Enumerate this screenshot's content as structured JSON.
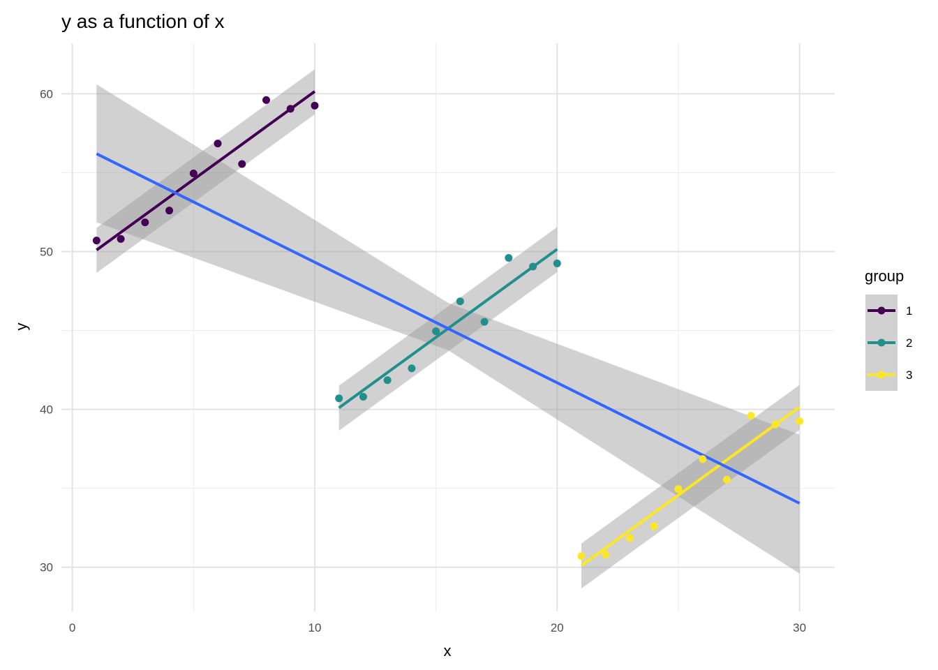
{
  "chart_data": {
    "type": "scatter",
    "title": "y as a function of x",
    "xlabel": "x",
    "ylabel": "y",
    "xlim": [
      -0.45,
      31.45
    ],
    "ylim": [
      27.2,
      63.2
    ],
    "x_ticks": [
      0,
      10,
      20,
      30
    ],
    "y_ticks": [
      30,
      40,
      50,
      60
    ],
    "grid": true,
    "legend": {
      "title": "group",
      "position": "right"
    },
    "series": [
      {
        "name": "1",
        "color": "#440154",
        "x": [
          1,
          2,
          3,
          4,
          5,
          6,
          7,
          8,
          9,
          10
        ],
        "y": [
          50.7,
          50.8,
          51.85,
          52.6,
          54.95,
          56.85,
          55.55,
          59.6,
          59.05,
          59.25
        ],
        "fit": {
          "x": [
            1,
            10
          ],
          "y": [
            50.1,
            60.15
          ]
        },
        "band": {
          "x": [
            1,
            10
          ],
          "lower": [
            48.65,
            58.7
          ],
          "upper": [
            51.5,
            61.55
          ]
        }
      },
      {
        "name": "2",
        "color": "#21908C",
        "x": [
          11,
          12,
          13,
          14,
          15,
          16,
          17,
          18,
          19,
          20
        ],
        "y": [
          40.7,
          40.8,
          41.85,
          42.6,
          44.95,
          46.85,
          45.55,
          49.6,
          49.05,
          49.25
        ],
        "fit": {
          "x": [
            11,
            20
          ],
          "y": [
            40.1,
            50.15
          ]
        },
        "band": {
          "x": [
            11,
            20
          ],
          "lower": [
            38.65,
            48.7
          ],
          "upper": [
            41.5,
            51.55
          ]
        }
      },
      {
        "name": "3",
        "color": "#FDE725",
        "x": [
          21,
          22,
          23,
          24,
          25,
          26,
          27,
          28,
          29,
          30
        ],
        "y": [
          30.7,
          30.8,
          31.85,
          32.6,
          34.95,
          36.85,
          35.55,
          39.6,
          39.05,
          39.25
        ],
        "fit": {
          "x": [
            21,
            30
          ],
          "y": [
            30.1,
            40.15
          ]
        },
        "band": {
          "x": [
            21,
            30
          ],
          "lower": [
            28.65,
            38.7
          ],
          "upper": [
            31.5,
            41.55
          ]
        }
      }
    ],
    "overall_fit": {
      "color": "#3366FF",
      "x": [
        1,
        30
      ],
      "y": [
        56.2,
        34.05
      ],
      "band": {
        "x": [
          1,
          15.5,
          30
        ],
        "lower": [
          51.85,
          43.75,
          29.6
        ],
        "upper": [
          60.6,
          46.75,
          38.4
        ]
      }
    }
  }
}
